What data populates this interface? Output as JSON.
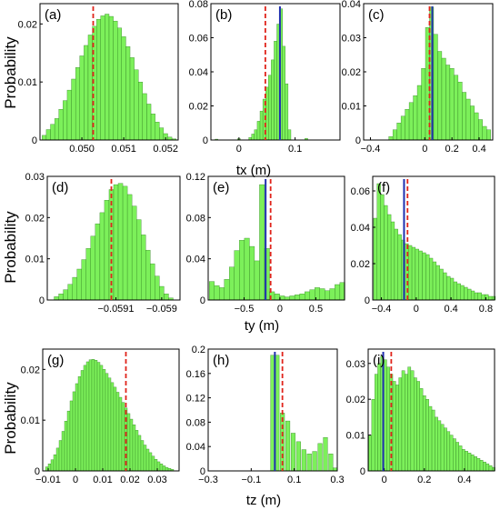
{
  "chart_data": [
    {
      "id": "a",
      "type": "bar",
      "panel_label": "(a)",
      "ylabel": "Probability",
      "xlabel": "",
      "xlim": [
        0.049,
        0.0523
      ],
      "ylim": [
        0,
        0.0235
      ],
      "xticks": [
        {
          "v": 0.05,
          "t": "0.050"
        },
        {
          "v": 0.051,
          "t": "0.051"
        },
        {
          "v": 0.052,
          "t": "0.052"
        }
      ],
      "yticks": [
        {
          "v": 0,
          "t": "0"
        },
        {
          "v": 0.01,
          "t": "0.01"
        },
        {
          "v": 0.02,
          "t": "0.02"
        }
      ],
      "markers": {
        "red": 0.05027,
        "blue": null
      },
      "x": [
        0.0491,
        0.0492,
        0.0493,
        0.0494,
        0.0495,
        0.0496,
        0.0497,
        0.0498,
        0.0499,
        0.05,
        0.0501,
        0.0502,
        0.0503,
        0.0504,
        0.0505,
        0.0506,
        0.0507,
        0.0508,
        0.0509,
        0.051,
        0.0511,
        0.0512,
        0.0513,
        0.0514,
        0.0515,
        0.0516,
        0.0517,
        0.0518,
        0.0519,
        0.052,
        0.0521,
        0.0522
      ],
      "values": [
        0.0008,
        0.0018,
        0.0027,
        0.0037,
        0.0053,
        0.0068,
        0.0086,
        0.0105,
        0.0125,
        0.0145,
        0.0163,
        0.0181,
        0.0196,
        0.0208,
        0.0214,
        0.0217,
        0.0213,
        0.0205,
        0.0193,
        0.0178,
        0.0161,
        0.0142,
        0.0121,
        0.01,
        0.008,
        0.0062,
        0.0045,
        0.0031,
        0.0021,
        0.0011,
        0.0005,
        0.0002
      ]
    },
    {
      "id": "b",
      "type": "bar",
      "panel_label": "(b)",
      "ylabel": "",
      "xlabel": "tx (m)",
      "xlim": [
        -0.05,
        0.18
      ],
      "ylim": [
        0,
        0.08
      ],
      "xticks": [
        {
          "v": 0,
          "t": "0"
        },
        {
          "v": 0.1,
          "t": "0.1"
        }
      ],
      "yticks": [
        {
          "v": 0,
          "t": "0"
        },
        {
          "v": 0.02,
          "t": "0.02"
        },
        {
          "v": 0.04,
          "t": "0.04"
        },
        {
          "v": 0.06,
          "t": "0.06"
        },
        {
          "v": 0.08,
          "t": "0.08"
        }
      ],
      "markers": {
        "red": 0.047,
        "blue": 0.073
      },
      "x": [
        -0.04,
        0.0,
        0.02,
        0.025,
        0.03,
        0.035,
        0.04,
        0.045,
        0.05,
        0.055,
        0.06,
        0.065,
        0.07,
        0.075,
        0.08,
        0.085,
        0.09,
        0.12
      ],
      "values": [
        0.0005,
        0.0008,
        0.0015,
        0.0035,
        0.006,
        0.011,
        0.017,
        0.024,
        0.031,
        0.038,
        0.047,
        0.058,
        0.068,
        0.077,
        0.055,
        0.033,
        0.006,
        0.001
      ]
    },
    {
      "id": "c",
      "type": "bar",
      "panel_label": "(c)",
      "ylabel": "",
      "xlabel": "",
      "xlim": [
        -0.45,
        0.5
      ],
      "ylim": [
        0,
        0.04
      ],
      "xticks": [
        {
          "v": -0.4,
          "t": "−0.4"
        },
        {
          "v": 0,
          "t": "0"
        },
        {
          "v": 0.2,
          "t": "0.2"
        },
        {
          "v": 0.4,
          "t": "0.4"
        }
      ],
      "yticks": [
        {
          "v": 0,
          "t": "0"
        },
        {
          "v": 0.01,
          "t": "0.01"
        },
        {
          "v": 0.02,
          "t": "0.02"
        },
        {
          "v": 0.03,
          "t": "0.03"
        },
        {
          "v": 0.04,
          "t": "0.04"
        }
      ],
      "markers": {
        "red": 0.035,
        "blue": 0.055
      },
      "x": [
        -0.25,
        -0.22,
        -0.19,
        -0.16,
        -0.13,
        -0.1,
        -0.07,
        -0.04,
        -0.01,
        0.02,
        0.05,
        0.08,
        0.11,
        0.14,
        0.17,
        0.2,
        0.23,
        0.26,
        0.29,
        0.32,
        0.35,
        0.38,
        0.41,
        0.44,
        0.47
      ],
      "values": [
        0.001,
        0.003,
        0.005,
        0.007,
        0.009,
        0.011,
        0.013,
        0.016,
        0.021,
        0.033,
        0.039,
        0.031,
        0.026,
        0.024,
        0.022,
        0.021,
        0.019,
        0.017,
        0.014,
        0.012,
        0.01,
        0.008,
        0.006,
        0.004,
        0.003
      ]
    },
    {
      "id": "d",
      "type": "bar",
      "panel_label": "(d)",
      "ylabel": "Probability",
      "xlabel": "",
      "xlim": [
        -0.05925,
        -0.05896
      ],
      "ylim": [
        0,
        0.03
      ],
      "xticks": [
        {
          "v": -0.0591,
          "t": "−0.0591"
        },
        {
          "v": -0.059,
          "t": "−0.059"
        }
      ],
      "yticks": [
        {
          "v": 0,
          "t": "0"
        },
        {
          "v": 0.01,
          "t": "0.01"
        },
        {
          "v": 0.02,
          "t": "0.02"
        },
        {
          "v": 0.03,
          "t": "0.03"
        }
      ],
      "markers": {
        "red": -0.05911,
        "blue": null
      },
      "x": [
        -0.05923,
        -0.05922,
        -0.05921,
        -0.0592,
        -0.05919,
        -0.05918,
        -0.05917,
        -0.05916,
        -0.05915,
        -0.05914,
        -0.05913,
        -0.05912,
        -0.05911,
        -0.0591,
        -0.05909,
        -0.05908,
        -0.05907,
        -0.05906,
        -0.05905,
        -0.05904,
        -0.05903,
        -0.05902,
        -0.05901,
        -0.059,
        -0.05899,
        -0.05898
      ],
      "values": [
        0.0008,
        0.0015,
        0.0025,
        0.0038,
        0.0055,
        0.0075,
        0.0098,
        0.0125,
        0.0155,
        0.0185,
        0.0212,
        0.0242,
        0.0268,
        0.028,
        0.0283,
        0.0276,
        0.0256,
        0.0228,
        0.0195,
        0.0158,
        0.0121,
        0.0088,
        0.0058,
        0.0033,
        0.0015,
        0.0005
      ]
    },
    {
      "id": "e",
      "type": "bar",
      "panel_label": "(e)",
      "ylabel": "",
      "xlabel": "ty (m)",
      "xlim": [
        -1.0,
        0.9
      ],
      "ylim": [
        0,
        0.12
      ],
      "xticks": [
        {
          "v": -0.5,
          "t": "−0.5"
        },
        {
          "v": 0,
          "t": "0"
        },
        {
          "v": 0.5,
          "t": "0.5"
        }
      ],
      "yticks": [
        {
          "v": 0,
          "t": "0"
        },
        {
          "v": 0.04,
          "t": "0.04"
        },
        {
          "v": 0.08,
          "t": "0.08"
        },
        {
          "v": 0.12,
          "t": "0.12"
        }
      ],
      "markers": {
        "red": -0.13,
        "blue": -0.2
      },
      "x": [
        -0.95,
        -0.88,
        -0.81,
        -0.74,
        -0.67,
        -0.6,
        -0.53,
        -0.46,
        -0.39,
        -0.32,
        -0.25,
        -0.18,
        -0.11,
        -0.04,
        0.03,
        0.1,
        0.17,
        0.24,
        0.31,
        0.38,
        0.45,
        0.52,
        0.59,
        0.66,
        0.73,
        0.8,
        0.87
      ],
      "values": [
        0.018,
        0.014,
        0.012,
        0.02,
        0.032,
        0.048,
        0.058,
        0.06,
        0.052,
        0.038,
        0.112,
        0.05,
        0.008,
        0.006,
        0.004,
        0.003,
        0.004,
        0.005,
        0.006,
        0.008,
        0.01,
        0.012,
        0.011,
        0.009,
        0.011,
        0.015,
        0.017
      ]
    },
    {
      "id": "f",
      "type": "bar",
      "panel_label": "(f)",
      "ylabel": "",
      "xlabel": "",
      "xlim": [
        -0.5,
        0.9
      ],
      "ylim": [
        0,
        0.068
      ],
      "xticks": [
        {
          "v": -0.4,
          "t": "−0.4"
        },
        {
          "v": 0,
          "t": "0"
        },
        {
          "v": 0.4,
          "t": "0.4"
        },
        {
          "v": 0.8,
          "t": "0.8"
        }
      ],
      "yticks": [
        {
          "v": 0,
          "t": "0"
        },
        {
          "v": 0.02,
          "t": "0.02"
        },
        {
          "v": 0.04,
          "t": "0.04"
        },
        {
          "v": 0.06,
          "t": "0.06"
        }
      ],
      "markers": {
        "red": -0.1,
        "blue": -0.14
      },
      "x": [
        -0.47,
        -0.43,
        -0.39,
        -0.35,
        -0.31,
        -0.27,
        -0.23,
        -0.19,
        -0.15,
        -0.11,
        -0.07,
        -0.03,
        0.01,
        0.05,
        0.09,
        0.13,
        0.17,
        0.21,
        0.25,
        0.29,
        0.33,
        0.37,
        0.41,
        0.45,
        0.49,
        0.53,
        0.57,
        0.61,
        0.65,
        0.69,
        0.73,
        0.77,
        0.81,
        0.85,
        0.89
      ],
      "values": [
        0.045,
        0.064,
        0.058,
        0.052,
        0.047,
        0.043,
        0.039,
        0.036,
        0.033,
        0.031,
        0.03,
        0.029,
        0.028,
        0.027,
        0.026,
        0.025,
        0.023,
        0.021,
        0.019,
        0.017,
        0.015,
        0.013,
        0.012,
        0.01,
        0.009,
        0.008,
        0.007,
        0.006,
        0.005,
        0.004,
        0.004,
        0.003,
        0.003,
        0.002,
        0.002
      ]
    },
    {
      "id": "g",
      "type": "bar",
      "panel_label": "(g)",
      "ylabel": "Probability",
      "xlabel": "",
      "xlim": [
        -0.012,
        0.038
      ],
      "ylim": [
        0,
        0.024
      ],
      "xticks": [
        {
          "v": -0.01,
          "t": "−0.01"
        },
        {
          "v": 0,
          "t": "0"
        },
        {
          "v": 0.01,
          "t": "0.01"
        },
        {
          "v": 0.02,
          "t": "0.02"
        },
        {
          "v": 0.03,
          "t": "0.03"
        }
      ],
      "yticks": [
        {
          "v": 0,
          "t": "0"
        },
        {
          "v": 0.01,
          "t": "0.01"
        },
        {
          "v": 0.02,
          "t": "0.02"
        }
      ],
      "markers": {
        "red": 0.0185,
        "blue": null
      },
      "x": [
        -0.0105,
        -0.0095,
        -0.0085,
        -0.0075,
        -0.0065,
        -0.0055,
        -0.0045,
        -0.0035,
        -0.0025,
        -0.0015,
        -0.0005,
        0.0005,
        0.0015,
        0.0025,
        0.0035,
        0.0045,
        0.0055,
        0.0065,
        0.0075,
        0.0085,
        0.0095,
        0.0105,
        0.0115,
        0.0125,
        0.0135,
        0.0145,
        0.0155,
        0.0165,
        0.0175,
        0.0185,
        0.0195,
        0.0205,
        0.0215,
        0.0225,
        0.0235,
        0.0245,
        0.0255,
        0.0265,
        0.0275,
        0.0285,
        0.0295,
        0.0305,
        0.0315,
        0.0325,
        0.0335,
        0.0345,
        0.0355
      ],
      "values": [
        0.0008,
        0.0014,
        0.0022,
        0.0032,
        0.0045,
        0.006,
        0.0078,
        0.0098,
        0.0118,
        0.0138,
        0.0156,
        0.0172,
        0.0186,
        0.0198,
        0.0208,
        0.0215,
        0.0219,
        0.022,
        0.0218,
        0.0214,
        0.0208,
        0.02,
        0.0192,
        0.0183,
        0.0174,
        0.0165,
        0.0155,
        0.0145,
        0.0135,
        0.0124,
        0.0113,
        0.0102,
        0.0091,
        0.008,
        0.007,
        0.006,
        0.0051,
        0.0043,
        0.0036,
        0.0029,
        0.0023,
        0.0018,
        0.0014,
        0.001,
        0.0007,
        0.0005,
        0.0003
      ]
    },
    {
      "id": "h",
      "type": "bar",
      "panel_label": "(h)",
      "ylabel": "",
      "xlabel": "tz (m)",
      "xlim": [
        -0.3,
        0.3
      ],
      "ylim": [
        0,
        0.2
      ],
      "xticks": [
        {
          "v": -0.3,
          "t": "−0.3"
        },
        {
          "v": -0.1,
          "t": "−0.1"
        },
        {
          "v": 0.1,
          "t": "0.1"
        },
        {
          "v": 0.3,
          "t": "0.3"
        }
      ],
      "yticks": [
        {
          "v": 0,
          "t": "0"
        },
        {
          "v": 0.04,
          "t": "0.04"
        },
        {
          "v": 0.08,
          "t": "0.08"
        },
        {
          "v": 0.12,
          "t": "0.12"
        },
        {
          "v": 0.16,
          "t": "0.16"
        },
        {
          "v": 0.2,
          "t": "0.2"
        }
      ],
      "markers": {
        "red": 0.045,
        "blue": 0.01
      },
      "x": [
        0.0,
        0.02,
        0.045,
        0.07,
        0.095,
        0.12,
        0.145,
        0.17,
        0.195,
        0.22,
        0.245,
        0.27,
        0.29
      ],
      "values": [
        0.19,
        0.19,
        0.095,
        0.082,
        0.062,
        0.048,
        0.035,
        0.028,
        0.032,
        0.045,
        0.055,
        0.028,
        0.005
      ]
    },
    {
      "id": "i",
      "type": "bar",
      "panel_label": "(i)",
      "ylabel": "",
      "xlabel": "",
      "xlim": [
        -0.08,
        0.55
      ],
      "ylim": [
        0,
        0.034
      ],
      "xticks": [
        {
          "v": 0,
          "t": "0"
        },
        {
          "v": 0.2,
          "t": "0.2"
        },
        {
          "v": 0.4,
          "t": "0.4"
        }
      ],
      "yticks": [
        {
          "v": 0,
          "t": "0"
        },
        {
          "v": 0.01,
          "t": "0.01"
        },
        {
          "v": 0.02,
          "t": "0.02"
        },
        {
          "v": 0.03,
          "t": "0.03"
        }
      ],
      "markers": {
        "red": 0.035,
        "blue": -0.005
      },
      "x": [
        -0.07,
        -0.055,
        -0.04,
        -0.025,
        -0.01,
        0.005,
        0.02,
        0.035,
        0.05,
        0.065,
        0.08,
        0.095,
        0.11,
        0.125,
        0.14,
        0.155,
        0.17,
        0.185,
        0.2,
        0.215,
        0.23,
        0.245,
        0.26,
        0.275,
        0.29,
        0.305,
        0.32,
        0.335,
        0.35,
        0.365,
        0.38,
        0.395,
        0.41,
        0.425,
        0.44,
        0.455,
        0.47,
        0.485,
        0.5,
        0.515,
        0.53,
        0.545
      ],
      "values": [
        0.01,
        0.02,
        0.027,
        0.03,
        0.032,
        0.031,
        0.029,
        0.027,
        0.025,
        0.024,
        0.026,
        0.028,
        0.027,
        0.029,
        0.028,
        0.026,
        0.025,
        0.023,
        0.021,
        0.02,
        0.018,
        0.017,
        0.015,
        0.014,
        0.013,
        0.012,
        0.011,
        0.01,
        0.009,
        0.008,
        0.007,
        0.006,
        0.0055,
        0.005,
        0.0045,
        0.004,
        0.0035,
        0.003,
        0.0025,
        0.002,
        0.0015,
        0.001
      ]
    }
  ]
}
